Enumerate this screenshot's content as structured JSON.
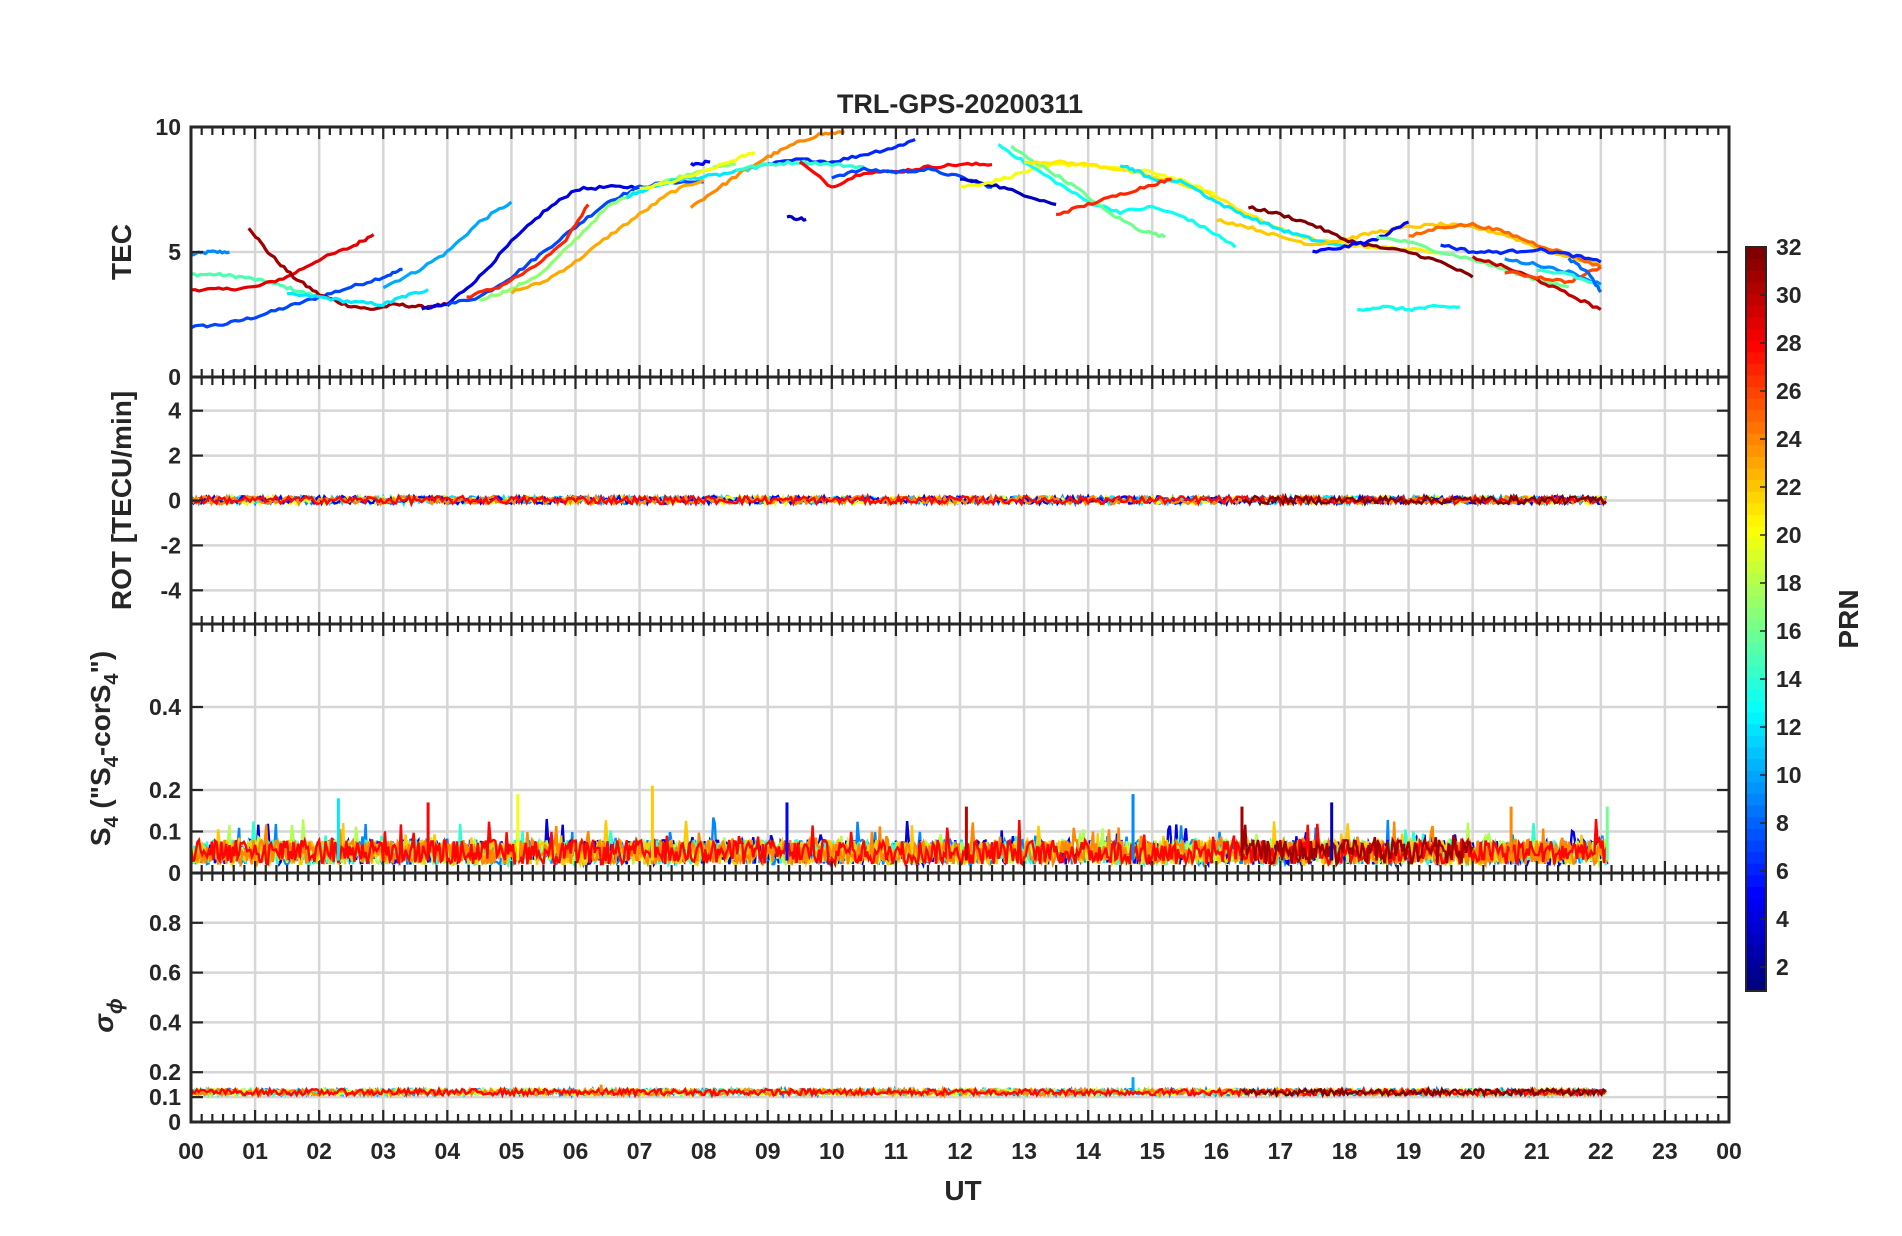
{
  "figure": {
    "title": "TRL-GPS-20200311",
    "xlabel": "UT"
  },
  "chart_data": {
    "type": "line",
    "title": "TRL-GPS-20200311",
    "xlabel": "UT",
    "xlim": [
      0,
      24
    ],
    "xticks": [
      "00",
      "01",
      "02",
      "03",
      "04",
      "05",
      "06",
      "07",
      "08",
      "09",
      "10",
      "11",
      "12",
      "13",
      "14",
      "15",
      "16",
      "17",
      "18",
      "19",
      "20",
      "21",
      "22",
      "23",
      "00"
    ],
    "panels": [
      {
        "id": "tec",
        "ylabel": "TEC",
        "ylim": [
          0,
          10
        ],
        "yticks": [
          "0",
          "5",
          "10"
        ]
      },
      {
        "id": "rot",
        "ylabel": "ROT [TECU/min]",
        "ylim": [
          -5.5,
          5.5
        ],
        "yticks": [
          "-4",
          "-2",
          "0",
          "2",
          "4"
        ]
      },
      {
        "id": "s4",
        "ylabel_main": "S",
        "ylabel_sub": "4",
        "ylabel_mid": " (\"S",
        "ylabel_mid_sub": "4",
        "ylabel_rest": "-corS",
        "ylabel_rest_sub": "4",
        "ylabel_end": "\")",
        "ylim": [
          0,
          0.6
        ],
        "yticks": [
          "0",
          "0.1",
          "0.2",
          "0.4"
        ]
      },
      {
        "id": "sigma",
        "ylabel_symbol": "σ",
        "ylabel_sub": "ϕ",
        "ylim": [
          0,
          1
        ],
        "yticks": [
          "0",
          "0.1",
          "0.2",
          "0.4",
          "0.6",
          "0.8"
        ]
      }
    ],
    "colorbar": {
      "label": "PRN",
      "range": [
        1,
        32
      ],
      "ticks": [
        "2",
        "4",
        "6",
        "8",
        "10",
        "12",
        "14",
        "16",
        "18",
        "20",
        "22",
        "24",
        "26",
        "28",
        "30",
        "32"
      ]
    },
    "tec_series": [
      {
        "prn": 9,
        "x": [
          0.0,
          0.3,
          0.6
        ],
        "y": [
          4.9,
          5.0,
          5.0
        ]
      },
      {
        "prn": 7,
        "x": [
          0.0,
          0.5,
          1.0,
          1.5,
          2.0,
          2.5,
          3.0,
          3.3
        ],
        "y": [
          2.0,
          2.1,
          2.4,
          2.8,
          3.2,
          3.6,
          4.0,
          4.3
        ]
      },
      {
        "prn": 15,
        "x": [
          0.0,
          0.4,
          0.8,
          1.2,
          1.6,
          2.0
        ],
        "y": [
          4.1,
          4.1,
          4.0,
          3.8,
          3.5,
          3.2
        ]
      },
      {
        "prn": 29,
        "x": [
          0.0,
          0.5,
          1.0,
          1.5,
          2.0,
          2.5,
          2.85
        ],
        "y": [
          3.5,
          3.5,
          3.6,
          4.0,
          4.7,
          5.2,
          5.7
        ]
      },
      {
        "prn": 31,
        "x": [
          0.9,
          1.2,
          1.6,
          2.0,
          2.4,
          2.8,
          3.2,
          3.6,
          4.0
        ],
        "y": [
          6.0,
          5.0,
          4.0,
          3.3,
          2.9,
          2.7,
          2.9,
          2.8,
          2.9
        ]
      },
      {
        "prn": 12,
        "x": [
          1.5,
          2.0,
          2.5,
          3.0,
          3.3,
          3.7
        ],
        "y": [
          3.3,
          3.2,
          3.0,
          2.9,
          3.2,
          3.5
        ]
      },
      {
        "prn": 10,
        "x": [
          3.0,
          3.5,
          4.0,
          4.5,
          5.0
        ],
        "y": [
          3.6,
          4.2,
          5.0,
          6.2,
          7.0
        ]
      },
      {
        "prn": 4,
        "x": [
          3.6,
          4.0,
          4.5,
          5.0,
          5.5,
          6.0,
          6.5,
          7.0
        ],
        "y": [
          2.7,
          2.9,
          4.0,
          5.4,
          6.6,
          7.5,
          7.6,
          7.6
        ]
      },
      {
        "prn": 7,
        "x": [
          4.0,
          4.5,
          5.0,
          5.5,
          6.0,
          6.5,
          7.0,
          7.5,
          8.0
        ],
        "y": [
          2.9,
          3.2,
          4.0,
          5.0,
          6.0,
          7.0,
          7.6,
          7.8,
          7.8
        ]
      },
      {
        "prn": 27,
        "x": [
          4.3,
          4.8,
          5.3,
          5.8,
          6.2
        ],
        "y": [
          3.2,
          3.6,
          4.3,
          5.3,
          6.9
        ]
      },
      {
        "prn": 17,
        "x": [
          4.5,
          5.0,
          5.5,
          6.0,
          6.5,
          7.0,
          7.5,
          8.0,
          8.5
        ],
        "y": [
          3.1,
          3.5,
          4.2,
          5.5,
          6.8,
          7.5,
          7.9,
          8.3,
          8.5
        ]
      },
      {
        "prn": 23,
        "x": [
          5.0,
          5.5,
          6.0,
          6.5,
          7.0,
          7.5,
          8.0
        ],
        "y": [
          3.4,
          3.8,
          4.6,
          5.6,
          6.5,
          7.4,
          7.9
        ]
      },
      {
        "prn": 12,
        "x": [
          6.8,
          7.2,
          7.6,
          8.0,
          8.5,
          9.0
        ],
        "y": [
          7.2,
          7.6,
          7.9,
          8.0,
          8.2,
          8.5
        ]
      },
      {
        "prn": 20,
        "x": [
          7.0,
          7.5,
          8.0,
          8.5,
          8.8
        ],
        "y": [
          7.5,
          7.8,
          8.2,
          8.7,
          9.0
        ]
      },
      {
        "prn": 24,
        "x": [
          7.8,
          8.2,
          8.6,
          9.0,
          9.4,
          9.8,
          10.2
        ],
        "y": [
          6.8,
          7.5,
          8.2,
          8.8,
          9.3,
          9.7,
          9.8
        ]
      },
      {
        "prn": 5,
        "x": [
          7.8,
          8.1
        ],
        "y": [
          8.5,
          8.6
        ]
      },
      {
        "prn": 6,
        "x": [
          9.0,
          9.5,
          10.0,
          10.5,
          11.0,
          11.3
        ],
        "y": [
          8.5,
          8.7,
          8.6,
          8.9,
          9.2,
          9.5
        ]
      },
      {
        "prn": 14,
        "x": [
          8.5,
          9.0,
          9.5,
          10.0,
          10.5
        ],
        "y": [
          8.3,
          8.5,
          8.6,
          8.5,
          8.4
        ]
      },
      {
        "prn": 3,
        "x": [
          9.3,
          9.6
        ],
        "y": [
          6.4,
          6.3
        ]
      },
      {
        "prn": 28,
        "x": [
          9.5,
          10.0,
          10.5,
          11.0,
          11.5,
          12.0,
          12.5
        ],
        "y": [
          8.6,
          7.6,
          8.2,
          8.2,
          8.4,
          8.5,
          8.5
        ]
      },
      {
        "prn": 7,
        "x": [
          10.0,
          10.5,
          11.0,
          11.5,
          12.0,
          12.5
        ],
        "y": [
          8.0,
          8.3,
          8.2,
          8.3,
          8.0,
          7.6
        ]
      },
      {
        "prn": 3,
        "x": [
          12.0,
          12.5,
          13.0,
          13.5
        ],
        "y": [
          7.9,
          7.7,
          7.3,
          6.9
        ]
      },
      {
        "prn": 20,
        "x": [
          12.0,
          12.5,
          13.0,
          13.5,
          14.0,
          14.5,
          15.0,
          15.5,
          16.0
        ],
        "y": [
          7.6,
          7.8,
          8.2,
          8.5,
          8.5,
          8.3,
          8.2,
          7.8,
          7.3
        ]
      },
      {
        "prn": 13,
        "x": [
          12.6,
          13.0,
          13.5,
          14.0,
          14.5,
          15.0,
          15.5,
          16.0,
          16.3
        ],
        "y": [
          9.3,
          8.6,
          7.8,
          7.0,
          6.6,
          6.8,
          6.4,
          5.7,
          5.2
        ]
      },
      {
        "prn": 16,
        "x": [
          12.8,
          13.3,
          13.8,
          14.3,
          14.8,
          15.2
        ],
        "y": [
          9.2,
          8.4,
          7.6,
          6.6,
          5.9,
          5.6
        ]
      },
      {
        "prn": 21,
        "x": [
          13.0,
          13.5,
          14.0,
          14.5,
          15.0,
          15.5,
          16.0,
          16.5,
          17.0,
          17.5,
          18.0,
          18.5,
          19.0,
          19.5
        ],
        "y": [
          8.6,
          8.6,
          8.5,
          8.3,
          8.0,
          7.7,
          7.2,
          6.5,
          5.9,
          5.5,
          5.3,
          5.2,
          5.1,
          5.0
        ]
      },
      {
        "prn": 12,
        "x": [
          14.5,
          14.8,
          15.0,
          15.5,
          16.0,
          16.5,
          17.0,
          17.5,
          18.0
        ],
        "y": [
          8.5,
          8.2,
          7.9,
          7.8,
          7.0,
          6.4,
          5.9,
          5.5,
          5.2
        ]
      },
      {
        "prn": 27,
        "x": [
          13.5,
          14.0,
          14.5,
          15.0,
          15.3
        ],
        "y": [
          6.5,
          6.9,
          7.3,
          7.7,
          7.9
        ]
      },
      {
        "prn": 22,
        "x": [
          16.0,
          16.5,
          17.0,
          17.5,
          18.0,
          18.5,
          19.0,
          19.5,
          20.0,
          20.5,
          21.0,
          21.5,
          22.0
        ],
        "y": [
          6.3,
          6.0,
          5.6,
          5.3,
          5.5,
          5.8,
          6.0,
          6.1,
          6.0,
          5.7,
          5.2,
          4.8,
          4.5
        ]
      },
      {
        "prn": 32,
        "x": [
          16.5,
          17.0,
          17.5,
          18.0,
          18.5,
          19.0,
          19.5,
          20.0
        ],
        "y": [
          6.8,
          6.5,
          6.1,
          5.5,
          5.2,
          5.0,
          4.6,
          4.0
        ]
      },
      {
        "prn": 5,
        "x": [
          17.5,
          18.0,
          18.5,
          19.0
        ],
        "y": [
          5.0,
          5.2,
          5.5,
          6.2
        ]
      },
      {
        "prn": 13,
        "x": [
          18.2,
          18.6,
          19.0,
          19.4,
          19.8
        ],
        "y": [
          2.7,
          2.8,
          2.7,
          2.8,
          2.8
        ]
      },
      {
        "prn": 16,
        "x": [
          18.5,
          19.0,
          19.5,
          20.0,
          20.5,
          21.0,
          21.5
        ],
        "y": [
          5.6,
          5.4,
          5.0,
          4.7,
          4.3,
          3.9,
          3.6
        ]
      },
      {
        "prn": 25,
        "x": [
          19.0,
          19.5,
          20.0,
          20.5,
          21.0,
          21.5,
          22.0
        ],
        "y": [
          5.6,
          6.0,
          6.1,
          5.8,
          5.3,
          4.9,
          4.4
        ]
      },
      {
        "prn": 6,
        "x": [
          19.5,
          20.0,
          20.5,
          21.0,
          21.5,
          22.0
        ],
        "y": [
          5.3,
          5.0,
          5.0,
          5.1,
          4.9,
          4.6
        ]
      },
      {
        "prn": 30,
        "x": [
          20.0,
          20.5,
          21.0,
          21.5,
          22.0
        ],
        "y": [
          4.8,
          4.4,
          3.9,
          3.3,
          2.7
        ]
      },
      {
        "prn": 26,
        "x": [
          20.5,
          21.0,
          21.5,
          22.0
        ],
        "y": [
          4.2,
          4.0,
          3.8,
          4.4
        ]
      },
      {
        "prn": 9,
        "x": [
          20.5,
          21.0,
          21.5,
          22.0
        ],
        "y": [
          4.7,
          4.5,
          4.2,
          3.7
        ]
      },
      {
        "prn": 14,
        "x": [
          21.0,
          21.5,
          22.0
        ],
        "y": [
          4.3,
          4.1,
          3.6
        ]
      },
      {
        "prn": 8,
        "x": [
          21.5,
          21.8,
          22.0
        ],
        "y": [
          4.7,
          4.2,
          3.4
        ]
      }
    ],
    "rot_series": [
      {
        "prn": 9,
        "x": [
          0.0,
          22.1
        ],
        "y": [
          0.05,
          0.05
        ]
      },
      {
        "prn": 28,
        "x": [
          0.0,
          22.1
        ],
        "y": [
          0.0,
          0.0
        ]
      }
    ],
    "s4_summary": {
      "baseline_min": 0.0,
      "baseline_max": 0.1,
      "spikes": [
        {
          "prn": 12,
          "x": 2.3,
          "y": 0.18
        },
        {
          "prn": 28,
          "x": 3.7,
          "y": 0.17
        },
        {
          "prn": 20,
          "x": 5.1,
          "y": 0.19
        },
        {
          "prn": 22,
          "x": 7.2,
          "y": 0.21
        },
        {
          "prn": 5,
          "x": 9.3,
          "y": 0.17
        },
        {
          "prn": 30,
          "x": 12.1,
          "y": 0.16
        },
        {
          "prn": 9,
          "x": 14.7,
          "y": 0.19
        },
        {
          "prn": 31,
          "x": 16.4,
          "y": 0.16
        },
        {
          "prn": 3,
          "x": 17.8,
          "y": 0.17
        },
        {
          "prn": 24,
          "x": 20.6,
          "y": 0.16
        },
        {
          "prn": 16,
          "x": 22.1,
          "y": 0.16
        }
      ]
    },
    "sigma_summary": {
      "baseline": 0.12,
      "spikes": [
        {
          "prn": 10,
          "x": 14.7,
          "y": 0.18
        },
        {
          "prn": 24,
          "x": 6.4,
          "y": 0.15
        }
      ]
    }
  }
}
